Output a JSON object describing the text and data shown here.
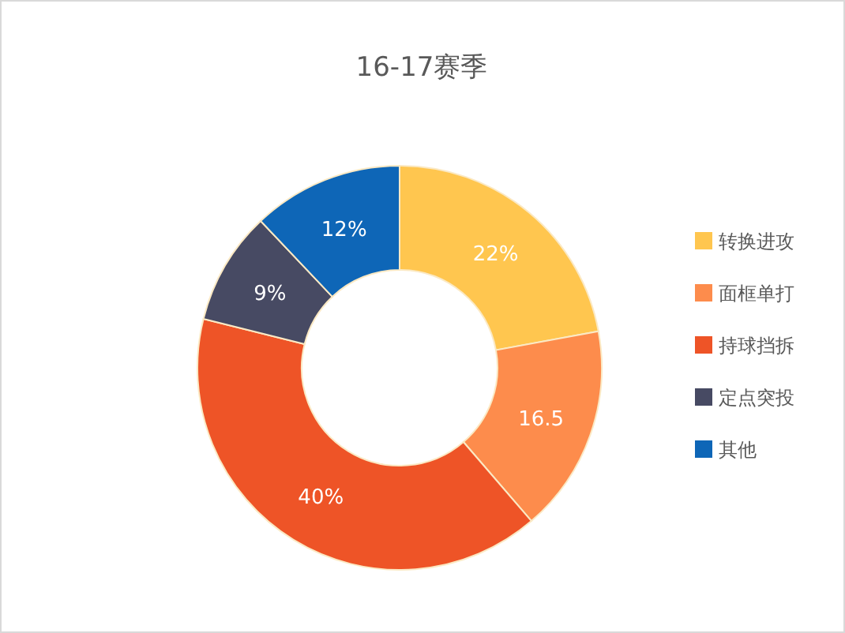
{
  "chart_data": {
    "type": "donut",
    "title": "16-17赛季",
    "categories": [
      "转换进攻",
      "面框单打",
      "持球挡拆",
      "定点突投",
      "其他"
    ],
    "values": [
      22,
      16.5,
      40,
      9,
      12
    ],
    "value_labels": [
      "22%",
      "16.5",
      "40%",
      "9%",
      "12%"
    ],
    "colors": [
      "#ffc64f",
      "#fd8c4c",
      "#ee5427",
      "#474a63",
      "#0e66b7"
    ],
    "legend": "right"
  }
}
